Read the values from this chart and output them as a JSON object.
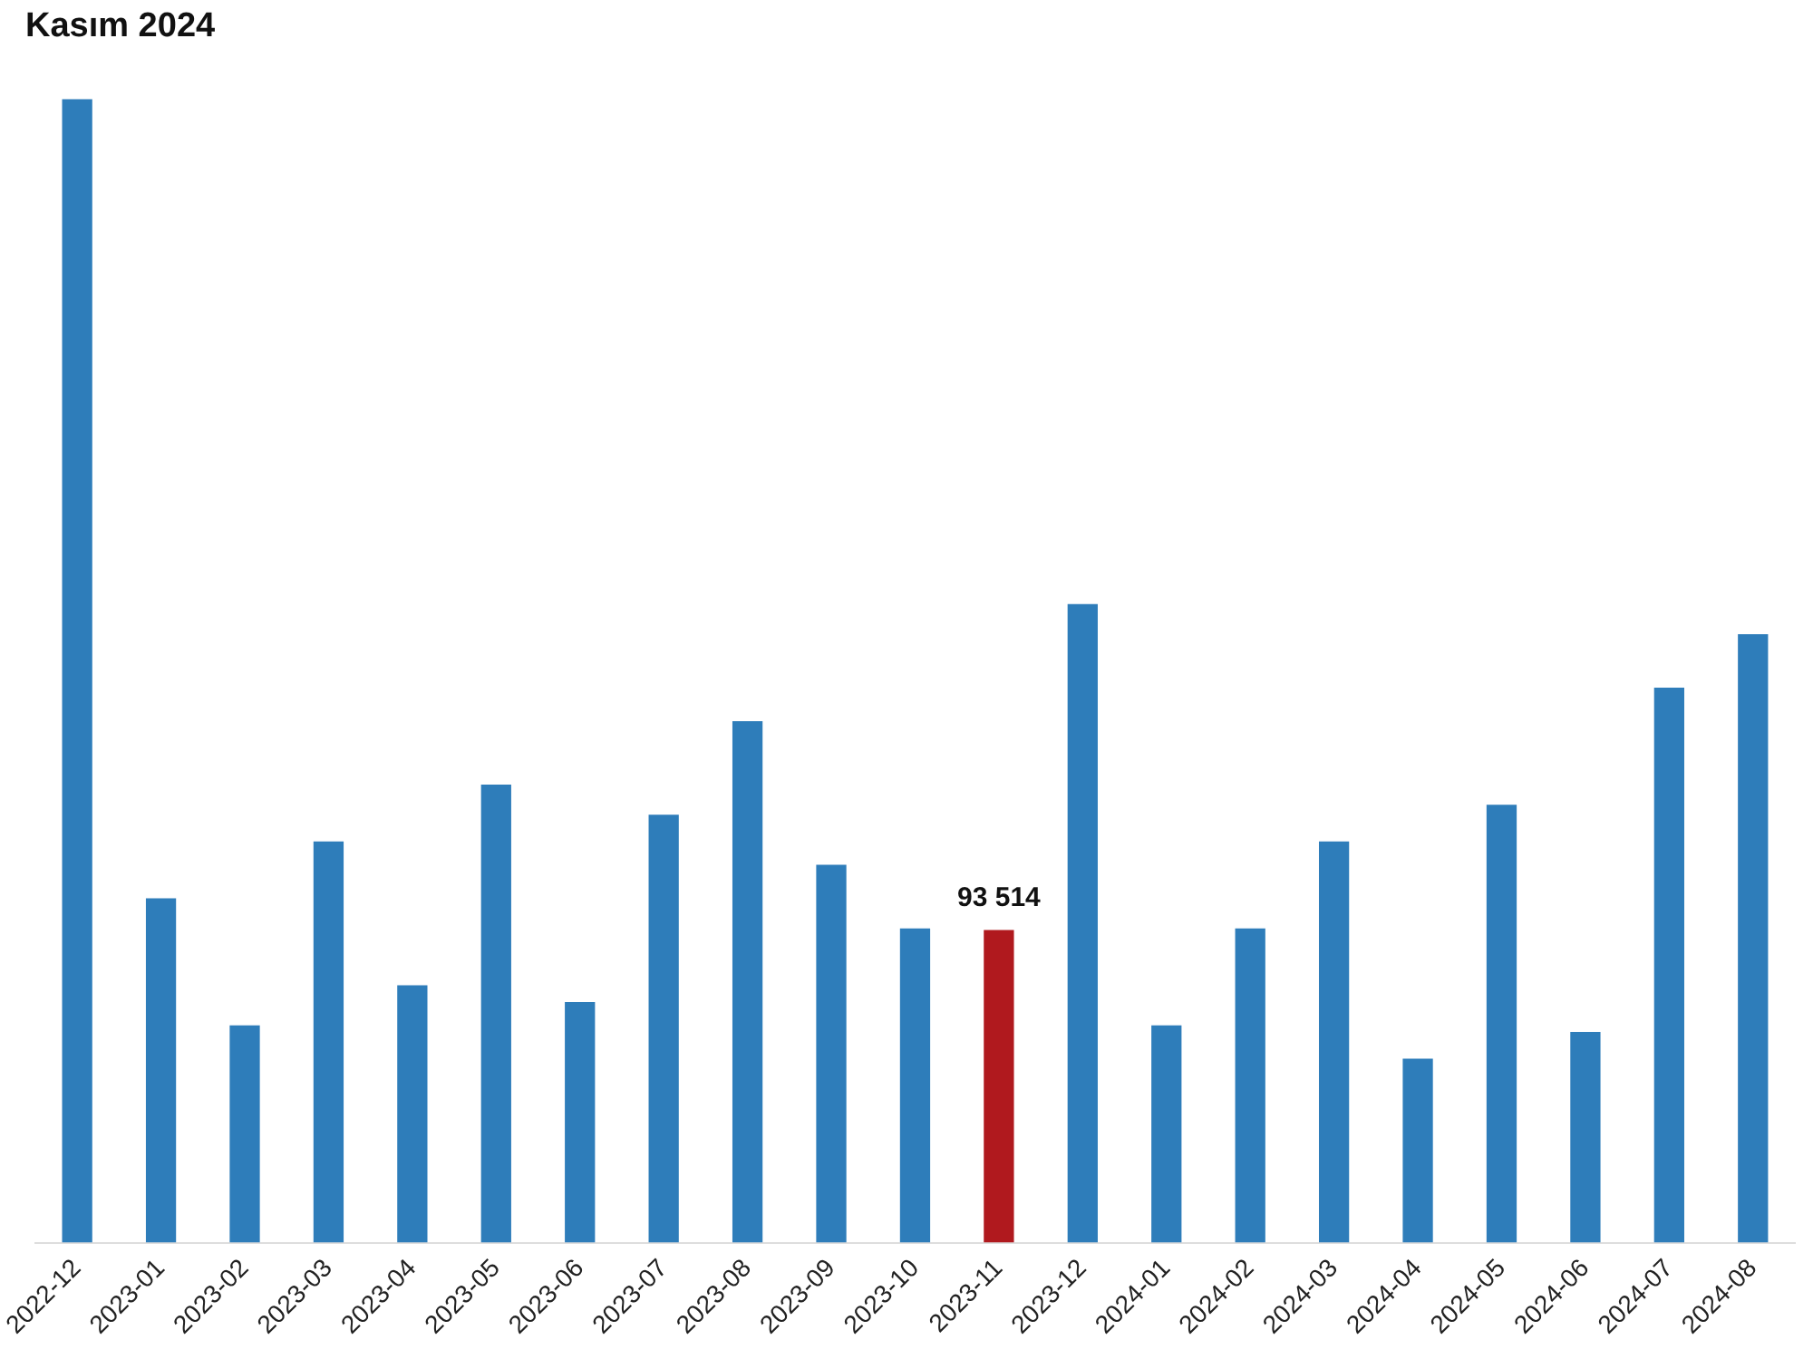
{
  "chart_data": {
    "type": "bar",
    "title": "Kasım 2024",
    "categories": [
      "2022-12",
      "2023-01",
      "2023-02",
      "2023-03",
      "2023-04",
      "2023-05",
      "2023-06",
      "2023-07",
      "2023-08",
      "2023-09",
      "2023-10",
      "2023-11",
      "2023-12",
      "2024-01",
      "2024-02",
      "2024-03",
      "2024-04",
      "2024-05",
      "2024-06",
      "2024-07",
      "2024-08"
    ],
    "values": [
      342000,
      103000,
      65000,
      120000,
      77000,
      137000,
      72000,
      128000,
      156000,
      113000,
      94000,
      93514,
      191000,
      65000,
      94000,
      120000,
      55000,
      131000,
      63000,
      166000,
      182000
    ],
    "colors": [
      "#2e7dba",
      "#2e7dba",
      "#2e7dba",
      "#2e7dba",
      "#2e7dba",
      "#2e7dba",
      "#2e7dba",
      "#2e7dba",
      "#2e7dba",
      "#2e7dba",
      "#2e7dba",
      "#b0191e",
      "#2e7dba",
      "#2e7dba",
      "#2e7dba",
      "#2e7dba",
      "#2e7dba",
      "#2e7dba",
      "#2e7dba",
      "#2e7dba",
      "#2e7dba"
    ],
    "value_labels": [
      null,
      null,
      null,
      null,
      null,
      null,
      null,
      null,
      null,
      null,
      null,
      "93 514",
      null,
      null,
      null,
      null,
      null,
      null,
      null,
      null,
      null
    ],
    "grid": false,
    "legend": false
  }
}
